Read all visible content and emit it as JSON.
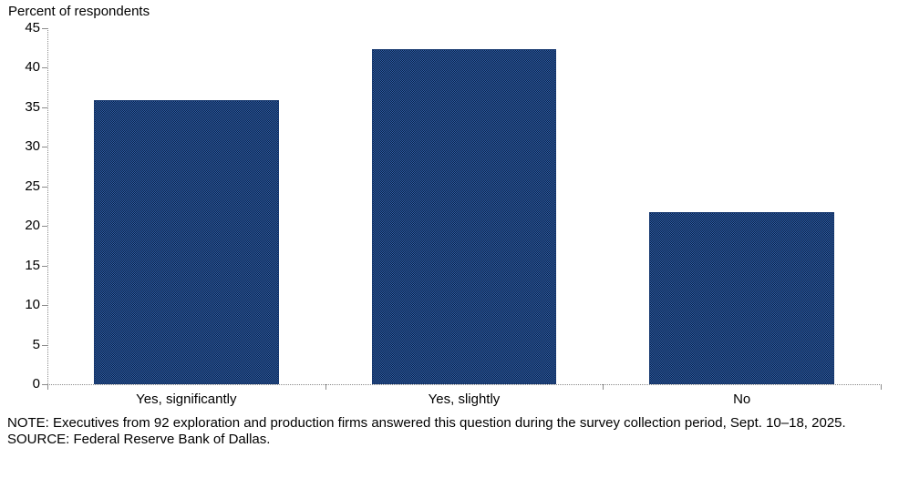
{
  "chart_data": {
    "type": "bar",
    "title": "Percent of respondents",
    "categories": [
      "Yes, significantly",
      "Yes, slightly",
      "No"
    ],
    "values": [
      35.9,
      42.4,
      21.7
    ],
    "xlabel": "",
    "ylabel": "Percent of respondents",
    "ylim": [
      0,
      45
    ],
    "ytick_step": 5,
    "grid": "off",
    "legend": "none",
    "bar_fill_primary": "#2d5da9",
    "bar_fill_secondary": "#0c2142",
    "bar_border_color": "#16386f",
    "axis_color": "#8c8c8c",
    "text_color": "#000000"
  },
  "notes": {
    "note": "NOTE: Executives from 92 exploration and production firms answered this question during the survey collection period, Sept. 10–18, 2025.",
    "source": "SOURCE: Federal Reserve Bank of Dallas."
  }
}
